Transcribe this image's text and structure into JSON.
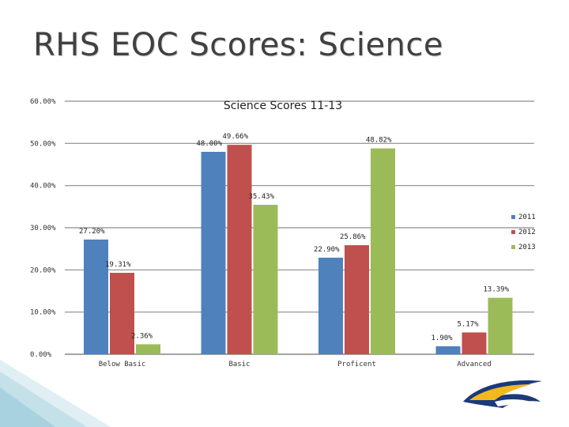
{
  "slide": {
    "title": "RHS EOC Scores: Science"
  },
  "colors": {
    "series": [
      "#4f81bd",
      "#c0504d",
      "#9bbb59"
    ],
    "accent_blue": "#1a3a7a",
    "accent_gold": "#f2b81e"
  },
  "decor": {
    "logo_icon": "eagle-logo-icon",
    "corner_icon": "teal-corner-pattern-icon"
  },
  "chart_data": {
    "type": "bar",
    "title": "Science Scores 11-13",
    "xlabel": "",
    "ylabel": "",
    "ylim": [
      0,
      60
    ],
    "yticks": [
      "0.00%",
      "10.00%",
      "20.00%",
      "30.00%",
      "40.00%",
      "50.00%",
      "60.00%"
    ],
    "grid": true,
    "legend_position": "right",
    "categories": [
      "Below Basic",
      "Basic",
      "Proficent",
      "Advanced"
    ],
    "series": [
      {
        "name": "2011",
        "values": [
          27.2,
          48.0,
          22.9,
          1.9
        ],
        "labels": [
          "27.20%",
          "48.00%",
          "22.90%",
          "1.90%"
        ]
      },
      {
        "name": "2012",
        "values": [
          19.31,
          49.66,
          25.86,
          5.17
        ],
        "labels": [
          "19.31%",
          "49.66%",
          "25.86%",
          "5.17%"
        ]
      },
      {
        "name": "2013",
        "values": [
          2.36,
          35.43,
          48.82,
          13.39
        ],
        "labels": [
          "2.36%",
          "35.43%",
          "48.82%",
          "13.39%"
        ]
      }
    ]
  }
}
